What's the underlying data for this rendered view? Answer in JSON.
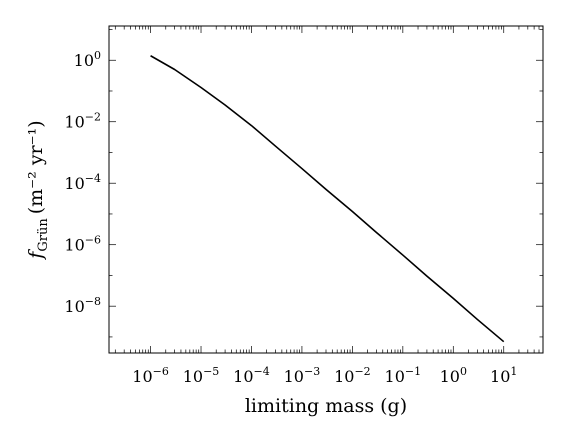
{
  "chart_data": {
    "type": "line",
    "xscale": "log",
    "yscale": "log",
    "xlim": [
      1.5e-07,
      60
    ],
    "ylim": [
      3e-10,
      13
    ],
    "grid": false,
    "legend": "none",
    "xlabel": "limiting mass (g)",
    "ylabel": {
      "main": "f",
      "subscript": "Grün",
      "units": "(m⁻² yr⁻¹)"
    },
    "x_ticks": [
      {
        "base": "10",
        "exp": "−6",
        "value": 1e-06
      },
      {
        "base": "10",
        "exp": "−5",
        "value": 1e-05
      },
      {
        "base": "10",
        "exp": "−4",
        "value": 0.0001
      },
      {
        "base": "10",
        "exp": "−3",
        "value": 0.001
      },
      {
        "base": "10",
        "exp": "−2",
        "value": 0.01
      },
      {
        "base": "10",
        "exp": "−1",
        "value": 0.1
      },
      {
        "base": "10",
        "exp": "0",
        "value": 1
      },
      {
        "base": "10",
        "exp": "1",
        "value": 10
      }
    ],
    "y_ticks": [
      {
        "base": "10",
        "exp": "0",
        "value": 1
      },
      {
        "base": "10",
        "exp": "−2",
        "value": 0.01
      },
      {
        "base": "10",
        "exp": "−4",
        "value": 0.0001
      },
      {
        "base": "10",
        "exp": "−6",
        "value": 1e-06
      },
      {
        "base": "10",
        "exp": "−8",
        "value": 1e-08
      }
    ],
    "series": [
      {
        "color": "#000000",
        "points": [
          [
            1e-06,
            1.4
          ],
          [
            3e-06,
            0.5
          ],
          [
            1e-05,
            0.13
          ],
          [
            3e-05,
            0.035
          ],
          [
            0.0001,
            0.0075
          ],
          [
            0.0003,
            0.0016
          ],
          [
            0.001,
            0.0003
          ],
          [
            0.003,
            6.3e-05
          ],
          [
            0.01,
            1.2e-05
          ],
          [
            0.03,
            2.5e-06
          ],
          [
            0.1,
            4.6e-07
          ],
          [
            0.3,
            9.5e-08
          ],
          [
            1,
            1.8e-08
          ],
          [
            3,
            3.7e-09
          ],
          [
            10,
            7e-10
          ]
        ]
      }
    ]
  }
}
